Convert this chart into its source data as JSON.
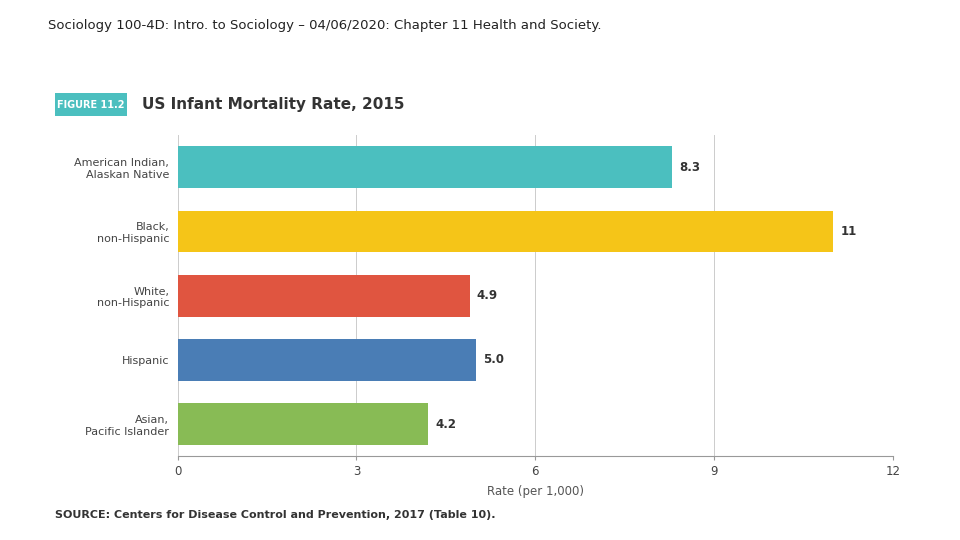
{
  "page_title": "Sociology 100-4D: Intro. to Sociology – 04/06/2020: Chapter 11 Health and Society.",
  "figure_label": "FIGURE 11.2",
  "figure_label_bg": "#4BBFBF",
  "chart_title": "US Infant Mortality Rate, 2015",
  "categories": [
    "American Indian,\nAlaskan Native",
    "Black,\nnon-Hispanic",
    "White,\nnon-Hispanic",
    "Hispanic",
    "Asian,\nPacific Islander"
  ],
  "values": [
    8.3,
    11.0,
    4.9,
    5.0,
    4.2
  ],
  "bar_colors": [
    "#4BBFBF",
    "#F5C518",
    "#E05540",
    "#4A7DB5",
    "#88BB55"
  ],
  "xlabel": "Rate (per 1,000)",
  "xlim": [
    0,
    12
  ],
  "xticks": [
    0,
    3,
    6,
    9,
    12
  ],
  "source_text": "SOURCE: Centers for Disease Control and Prevention, 2017 (Table 10).",
  "background_color": "#FFFFFF",
  "bar_height": 0.65,
  "grid_color": "#CCCCCC"
}
